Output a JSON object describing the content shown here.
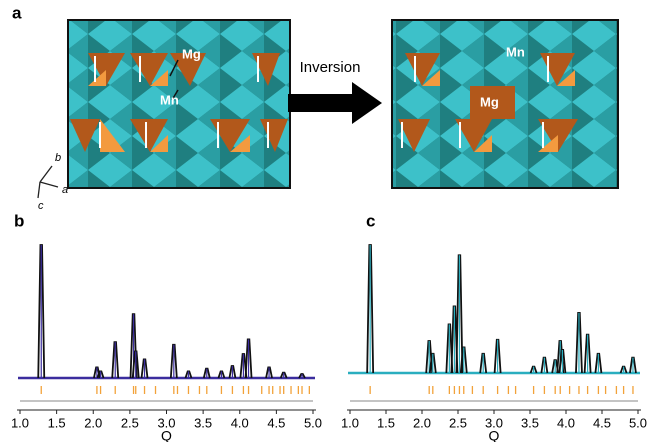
{
  "figure": {
    "panel_a": "a",
    "arrow_label": "Inversion",
    "mg": "Mg",
    "mn": "Mn",
    "axis_b": "b",
    "axis_a": "a",
    "axis_c": "c",
    "mg2": "Mg",
    "mn2": "Mn"
  },
  "chart_data": [
    {
      "type": "diffraction",
      "title": "b",
      "xlabel": "Q",
      "color": "#3b2d9e",
      "reflection_color": "#f2a23a",
      "x": [
        1.29,
        2.05,
        2.1,
        2.3,
        2.55,
        2.58,
        2.7,
        3.1,
        3.3,
        3.55,
        3.75,
        3.9,
        4.05,
        4.12,
        4.4,
        4.6,
        4.85
      ],
      "values": [
        100,
        8,
        5,
        27,
        48,
        20,
        14,
        25,
        5,
        7,
        5,
        9,
        18,
        29,
        8,
        4,
        3
      ],
      "reflections": [
        1.29,
        2.05,
        2.1,
        2.3,
        2.55,
        2.58,
        2.7,
        2.85,
        3.1,
        3.15,
        3.3,
        3.45,
        3.55,
        3.75,
        3.9,
        4.05,
        4.12,
        4.3,
        4.4,
        4.45,
        4.55,
        4.6,
        4.7,
        4.8,
        4.85,
        4.95
      ],
      "xlim": [
        1,
        5
      ],
      "ylim": [
        0,
        100
      ],
      "xticks": [
        {
          "value": 1,
          "label": "1.0"
        },
        1.5,
        {
          "value": 2,
          "label": "2.0"
        },
        2.5,
        {
          "value": 3,
          "label": "3.0"
        },
        3.5,
        {
          "value": 4,
          "label": "4.0"
        },
        4.5,
        {
          "value": 5,
          "label": "5.0"
        }
      ]
    },
    {
      "type": "diffraction",
      "title": "c",
      "xlabel": "Q",
      "color": "#2aaebf",
      "reflection_color": "#f2a23a",
      "x": [
        1.28,
        2.1,
        2.15,
        2.38,
        2.45,
        2.52,
        2.58,
        2.85,
        3.05,
        3.55,
        3.7,
        3.85,
        3.92,
        3.95,
        4.18,
        4.3,
        4.45,
        4.8,
        4.93
      ],
      "values": [
        100,
        25,
        15,
        38,
        52,
        92,
        20,
        15,
        26,
        5,
        12,
        10,
        25,
        18,
        47,
        30,
        15,
        5,
        12
      ],
      "reflections": [
        1.28,
        2.1,
        2.15,
        2.38,
        2.45,
        2.52,
        2.58,
        2.7,
        2.85,
        3.05,
        3.2,
        3.3,
        3.55,
        3.7,
        3.85,
        3.92,
        4.05,
        4.18,
        4.3,
        4.45,
        4.55,
        4.7,
        4.8,
        4.93
      ],
      "xlim": [
        1,
        5
      ],
      "ylim": [
        0,
        100
      ],
      "xticks": [
        {
          "value": 1,
          "label": "1.0"
        },
        1.5,
        {
          "value": 2,
          "label": "2.0"
        },
        2.5,
        {
          "value": 3,
          "label": "3.0"
        },
        3.5,
        {
          "value": 4,
          "label": "4.0"
        },
        4.5,
        {
          "value": 5,
          "label": "5.0"
        }
      ]
    }
  ]
}
